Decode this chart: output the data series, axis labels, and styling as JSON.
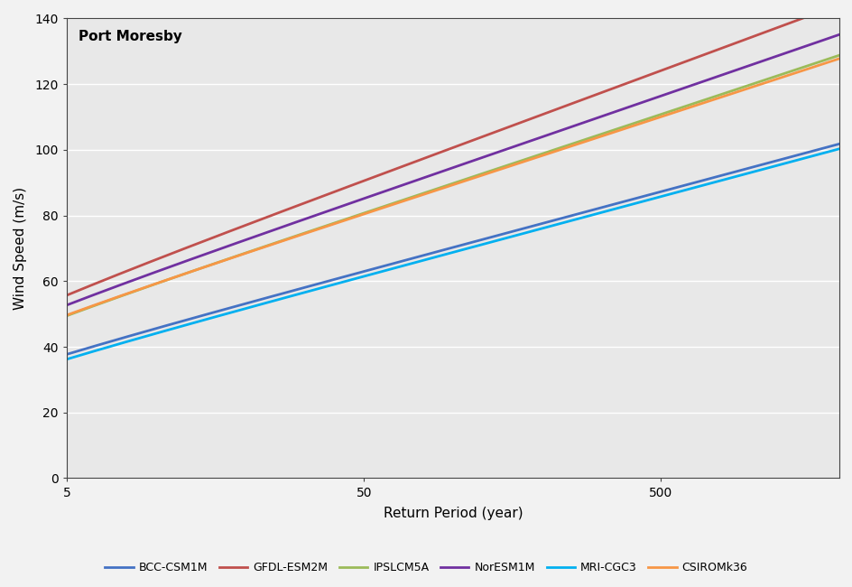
{
  "title": "Port Moresby",
  "xlabel": "Return Period (year)",
  "ylabel": "Wind Speed (m/s)",
  "ylim": [
    0,
    140
  ],
  "xlim": [
    5,
    2000
  ],
  "xticks": [
    5,
    50,
    500
  ],
  "yticks": [
    0,
    20,
    40,
    60,
    80,
    100,
    120,
    140
  ],
  "plot_bg_color": "#e8e8e8",
  "fig_bg_color": "#f2f2f2",
  "series": [
    {
      "label": "BCC-CSM1M",
      "color": "#4472c4",
      "u": 22.0,
      "alpha": 10.5
    },
    {
      "label": "GFDL-ESM2M",
      "color": "#c0504d",
      "u": 34.0,
      "alpha": 14.5
    },
    {
      "label": "IPSLCM5A",
      "color": "#9bbb59",
      "u": 30.0,
      "alpha": 13.0
    },
    {
      "label": "NorESM1M",
      "color": "#7030a0",
      "u": 32.5,
      "alpha": 13.5
    },
    {
      "label": "MRI-CGC3",
      "color": "#00b0f0",
      "u": 20.5,
      "alpha": 10.5
    },
    {
      "label": "CSIROMk36",
      "color": "#f79646",
      "u": 30.5,
      "alpha": 12.8
    }
  ]
}
